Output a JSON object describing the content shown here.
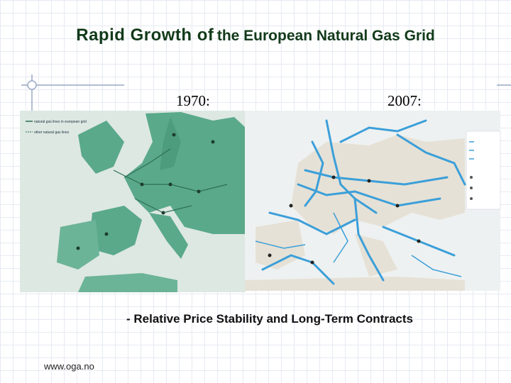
{
  "header": {
    "title_part1": "Rapid Growth of",
    "title_part2": "the European Natural Gas Grid"
  },
  "maps": [
    {
      "label": "1970:",
      "legend": [
        "natural gas lines in european grid",
        "other natural gas lines"
      ]
    },
    {
      "label": "2007:"
    }
  ],
  "subtitle": "- Relative Price Stability and Long-Term Contracts",
  "footer": "www.oga.no"
}
